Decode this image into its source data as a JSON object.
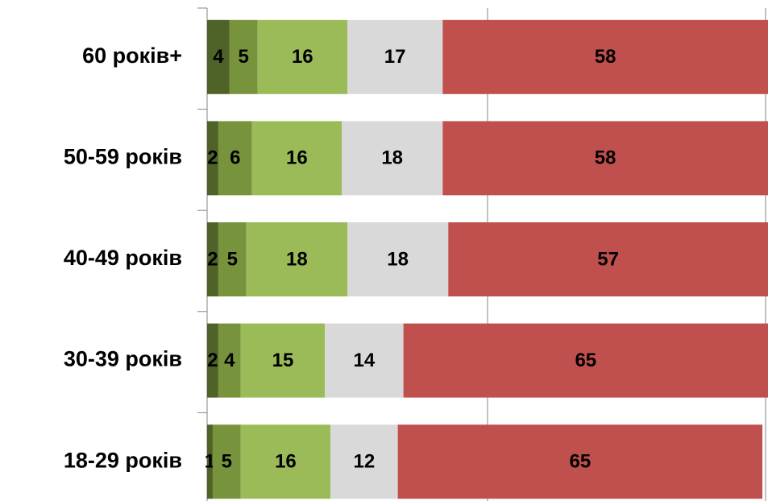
{
  "chart_data": {
    "type": "stacked-barh",
    "categories": [
      "60 років+",
      "50-59 років",
      "40-49 років",
      "30-39 років",
      "18-29 років"
    ],
    "series": [
      {
        "color": "#4f6228",
        "values": [
          4,
          2,
          2,
          2,
          1
        ]
      },
      {
        "color": "#77933c",
        "values": [
          5,
          6,
          5,
          4,
          5
        ]
      },
      {
        "color": "#9bbb59",
        "values": [
          16,
          16,
          18,
          15,
          16
        ]
      },
      {
        "color": "#d9d9d9",
        "values": [
          17,
          18,
          18,
          14,
          12
        ]
      },
      {
        "color": "#c0504d",
        "values": [
          58,
          58,
          57,
          65,
          65
        ]
      }
    ],
    "xlim": [
      0,
      100
    ],
    "xticks": [
      0,
      50,
      100
    ],
    "grid": true
  }
}
